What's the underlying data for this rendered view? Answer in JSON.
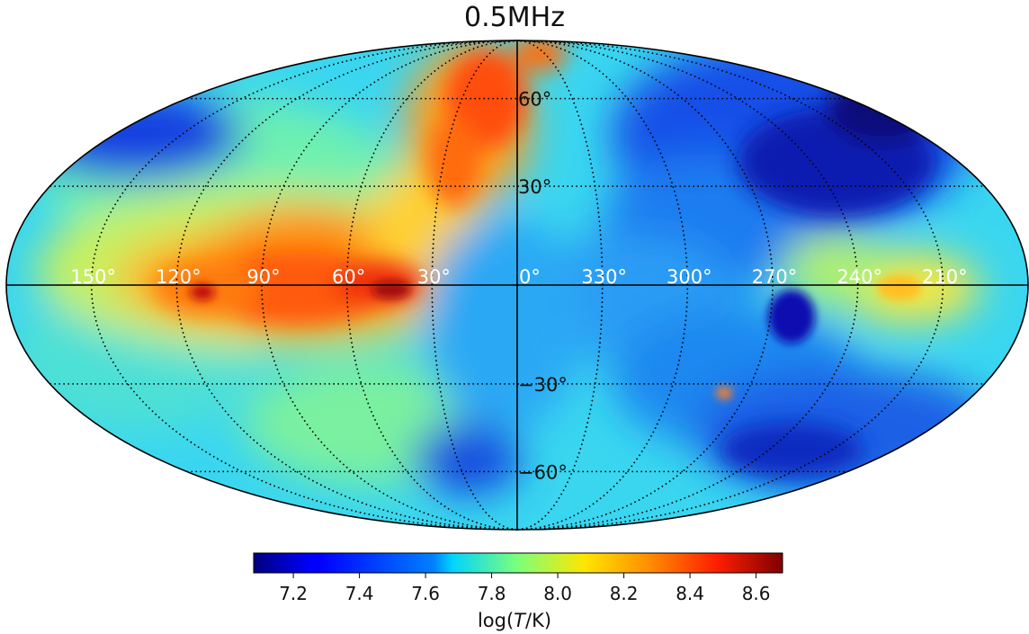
{
  "title": "0.5MHz",
  "projection": "mollweide",
  "map": {
    "graticule_style": "dotted",
    "longitude_labels": [
      "150°",
      "120°",
      "90°",
      "60°",
      "30°",
      "0°",
      "330°",
      "300°",
      "270°",
      "240°",
      "210°"
    ],
    "latitude_labels": [
      "60°",
      "30°",
      "−30°",
      "−60°"
    ],
    "longitude_label_color": "#ffffff",
    "latitude_label_color": "#111111"
  },
  "colorbar": {
    "colormap": "jet",
    "range": [
      7.08,
      8.68
    ],
    "ticks": [
      "7.2",
      "7.4",
      "7.6",
      "7.8",
      "8.0",
      "8.2",
      "8.4",
      "8.6"
    ],
    "label_prefix": "log(",
    "label_italic": "T",
    "label_suffix": "/K)"
  }
}
